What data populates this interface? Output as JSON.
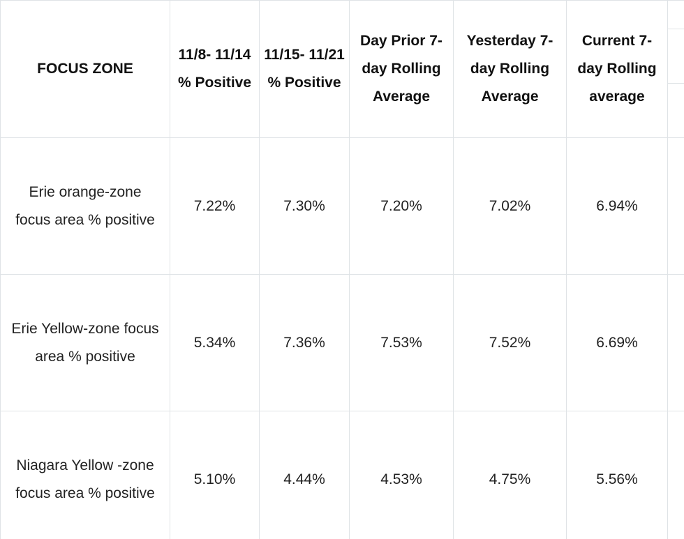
{
  "chart_data": {
    "type": "table",
    "columns": [
      "FOCUS ZONE",
      "11/8- 11/14 % Positive",
      "11/15- 11/21 % Positive",
      "Day Prior 7-day Rolling Average",
      "Yesterday 7-day Rolling Average",
      "Current 7-day Rolling average"
    ],
    "rows": [
      {
        "zone": "Erie orange-zone focus area % positive",
        "values": [
          "7.22%",
          "7.30%",
          "7.20%",
          "7.02%",
          "6.94%"
        ]
      },
      {
        "zone": "Erie Yellow-zone focus area % positive",
        "values": [
          "5.34%",
          "7.36%",
          "7.53%",
          "7.52%",
          "6.69%"
        ]
      },
      {
        "zone": "Niagara Yellow -zone focus area % positive",
        "values": [
          "5.10%",
          "4.44%",
          "4.53%",
          "4.75%",
          "5.56%"
        ]
      }
    ]
  }
}
